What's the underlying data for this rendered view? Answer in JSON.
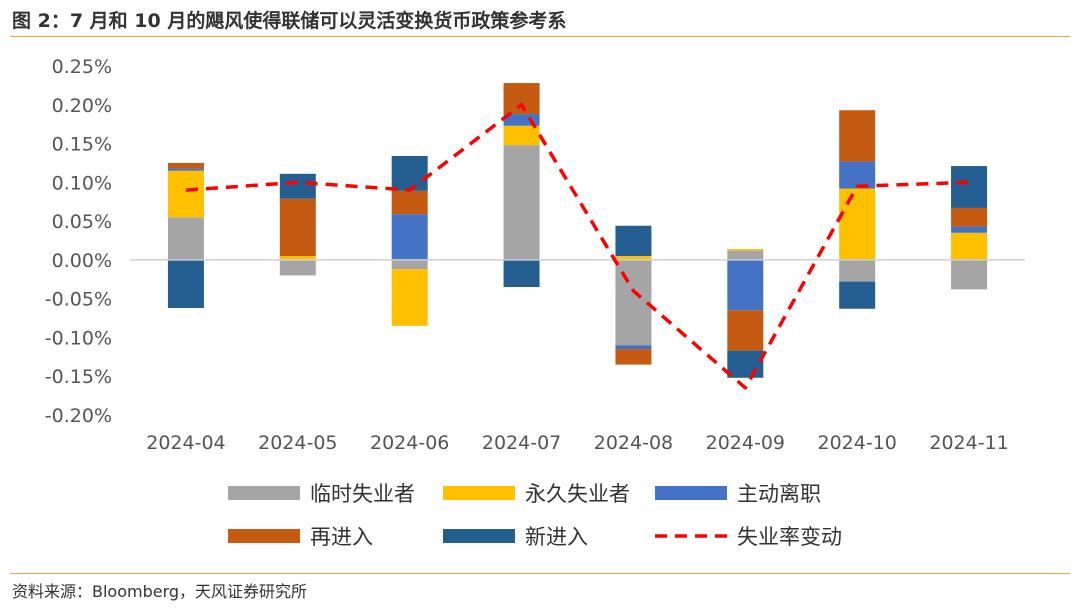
{
  "page": {
    "title": "图 2：7 月和 10 月的飓风使得联储可以灵活变换货币政策参考系",
    "source": "资料来源：Bloomberg，天风证券研究所"
  },
  "chart_data": {
    "type": "bar",
    "stacked": true,
    "categories": [
      "2024-04",
      "2024-05",
      "2024-06",
      "2024-07",
      "2024-08",
      "2024-09",
      "2024-10",
      "2024-11"
    ],
    "ylim": [
      -0.002,
      0.0025
    ],
    "yticks": [
      0.0025,
      0.002,
      0.0015,
      0.001,
      0.0005,
      0.0,
      -0.0005,
      -0.001,
      -0.0015,
      -0.002
    ],
    "ytick_labels": [
      "0.25%",
      "0.20%",
      "0.15%",
      "0.10%",
      "0.05%",
      "0.00%",
      "-0.05%",
      "-0.10%",
      "-0.15%",
      "-0.20%"
    ],
    "grid": false,
    "legend_position": "bottom",
    "series": [
      {
        "name": "临时失业者",
        "color": "#a5a5a5",
        "values": [
          0.00055,
          -0.0002,
          -0.00012,
          0.00148,
          -0.0011,
          0.00012,
          -0.00028,
          -0.00038
        ]
      },
      {
        "name": "永久失业者",
        "color": "#ffc000",
        "values": [
          0.0006,
          5e-05,
          -0.00073,
          0.00025,
          5e-05,
          2e-05,
          0.00092,
          0.00035
        ]
      },
      {
        "name": "主动离职",
        "color": "#4472c4",
        "values": [
          3e-05,
          0.0,
          0.00059,
          0.00015,
          -5e-05,
          -0.00065,
          0.00035,
          8e-05
        ]
      },
      {
        "name": "再进入",
        "color": "#c55a11",
        "values": [
          7e-05,
          0.00074,
          0.0003,
          0.0004,
          -0.0002,
          -0.00052,
          0.00066,
          0.00024
        ]
      },
      {
        "name": "新进入",
        "color": "#255e91",
        "values": [
          -0.00062,
          0.00032,
          0.00045,
          -0.00035,
          0.00039,
          -0.00035,
          -0.00035,
          0.00054
        ]
      },
      {
        "name": "失业率变动",
        "type": "line",
        "dashed": true,
        "color": "#ff0000",
        "values": [
          0.0009,
          0.001,
          0.0009,
          0.002,
          -0.0004,
          -0.00165,
          0.00095,
          0.001
        ]
      }
    ]
  }
}
